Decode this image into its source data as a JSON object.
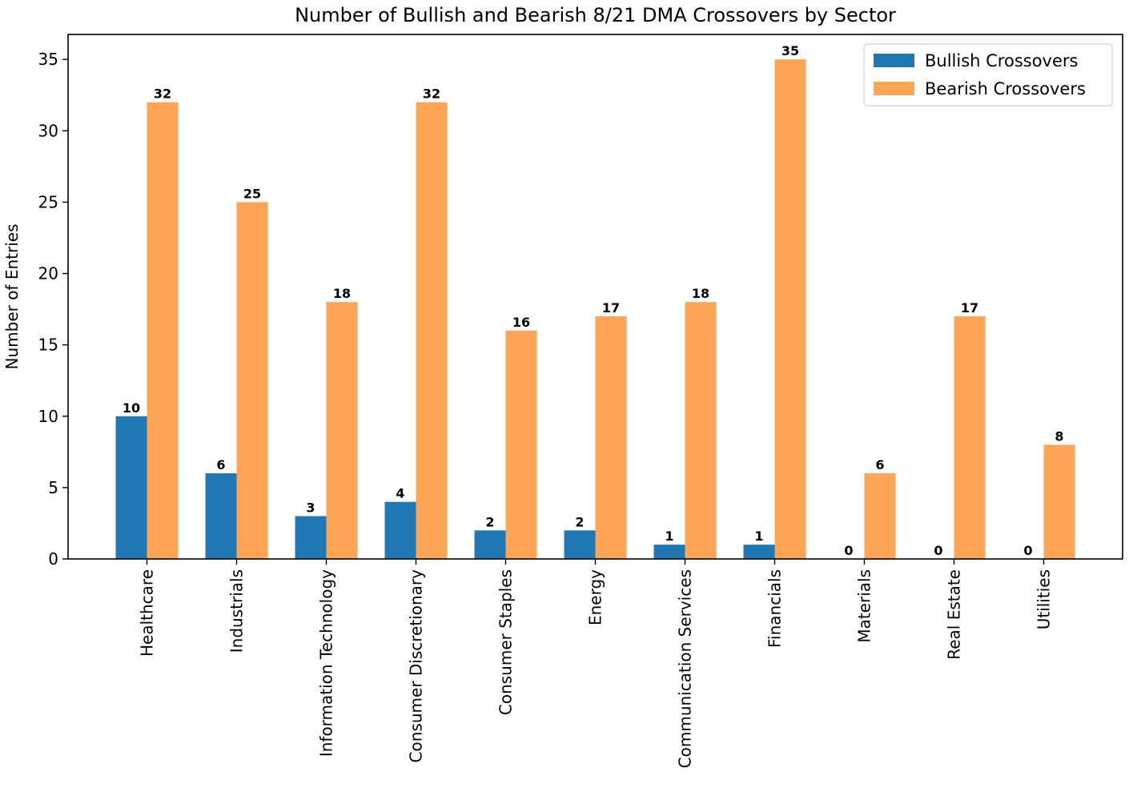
{
  "chart_data": {
    "type": "bar",
    "title": "Number of Bullish and Bearish 8/21 DMA Crossovers by Sector",
    "xlabel": "",
    "ylabel": "Number of Entries",
    "ylim": [
      0,
      36.75
    ],
    "yticks": [
      0,
      5,
      10,
      15,
      20,
      25,
      30,
      35
    ],
    "legend_position": "top-right",
    "grid": false,
    "categories": [
      "Healthcare",
      "Industrials",
      "Information Technology",
      "Consumer Discretionary",
      "Consumer Staples",
      "Energy",
      "Communication Services",
      "Financials",
      "Materials",
      "Real Estate",
      "Utilities"
    ],
    "series": [
      {
        "name": "Bullish Crossovers",
        "color": "#1f77b4",
        "values": [
          10,
          6,
          3,
          4,
          2,
          2,
          1,
          1,
          0,
          0,
          0
        ]
      },
      {
        "name": "Bearish Crossovers",
        "color": "#ffa555",
        "values": [
          32,
          25,
          18,
          32,
          16,
          17,
          18,
          35,
          6,
          17,
          8
        ]
      }
    ]
  }
}
